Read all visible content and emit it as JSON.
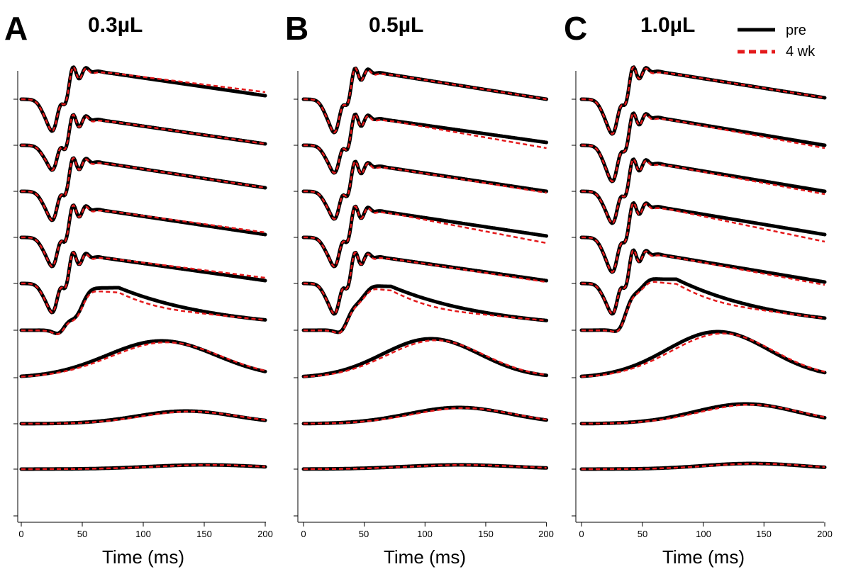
{
  "legend": [
    {
      "label": "pre",
      "style": "solid",
      "color": "#000000"
    },
    {
      "label": "4 wk",
      "style": "dashed",
      "color": "#e41a1c"
    }
  ],
  "chart_data": [
    {
      "type": "line",
      "panel": "A",
      "title": "0.3µL",
      "xlabel": "Time (ms)",
      "xlim": [
        0,
        200
      ],
      "xticks": [
        "0",
        "50",
        "100",
        "150",
        "200"
      ],
      "n_traces": 9,
      "series": [
        {
          "name": "pre"
        },
        {
          "name": "4 wk"
        }
      ],
      "y_scale_note": "stacked traces, no y tick labels shown"
    },
    {
      "type": "line",
      "panel": "B",
      "title": "0.5µL",
      "xlabel": "Time (ms)",
      "xlim": [
        0,
        200
      ],
      "xticks": [
        "0",
        "50",
        "100",
        "150",
        "200"
      ],
      "n_traces": 9,
      "series": [
        {
          "name": "pre"
        },
        {
          "name": "4 wk"
        }
      ],
      "y_scale_note": "stacked traces, no y tick labels shown"
    },
    {
      "type": "line",
      "panel": "C",
      "title": "1.0µL",
      "xlabel": "Time (ms)",
      "xlim": [
        0,
        200
      ],
      "xticks": [
        "0",
        "50",
        "100",
        "150",
        "200"
      ],
      "n_traces": 9,
      "series": [
        {
          "name": "pre"
        },
        {
          "name": "4 wk"
        }
      ],
      "y_scale_note": "stacked traces, no y tick labels shown"
    }
  ]
}
